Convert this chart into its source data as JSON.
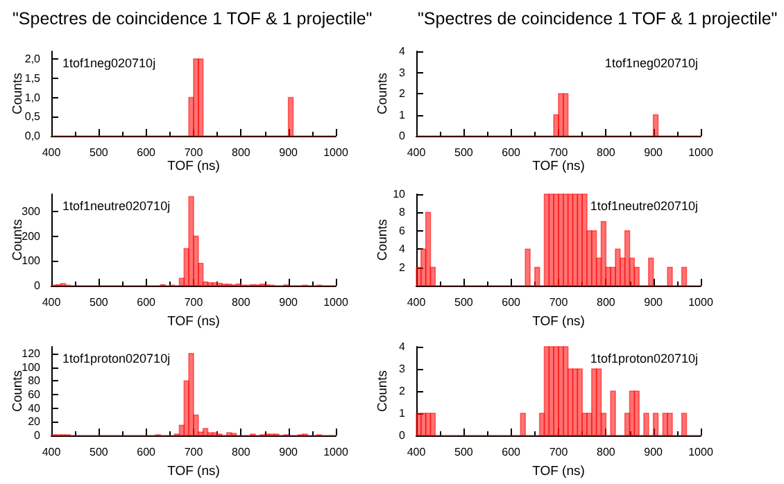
{
  "chart_data": [
    {
      "type": "histogram",
      "title": "\"Spectres de coincidence 1 TOF & 1 projectile\"",
      "xlabel": "TOF (ns)",
      "ylabel": "Counts",
      "annotations": [
        "1tof1neg020710j"
      ],
      "color": "#ff0000",
      "xlim": [
        400,
        1000
      ],
      "xticks": [
        400,
        500,
        600,
        700,
        800,
        900,
        1000
      ],
      "ylim": [
        0,
        2.2
      ],
      "yticks": [
        {
          "value": 0,
          "label": "0,0"
        },
        {
          "value": 0.5,
          "label": "0,5"
        },
        {
          "value": 1,
          "label": "1,0"
        },
        {
          "value": 1.5,
          "label": "1,5"
        },
        {
          "value": 2,
          "label": "2,0"
        }
      ],
      "grid": false,
      "bins": [
        400,
        410,
        420,
        430,
        440,
        450,
        460,
        470,
        480,
        490,
        500,
        510,
        520,
        530,
        540,
        550,
        560,
        570,
        580,
        590,
        600,
        610,
        620,
        630,
        640,
        650,
        660,
        670,
        680,
        690,
        700,
        710,
        720,
        730,
        740,
        750,
        760,
        770,
        780,
        790,
        800,
        810,
        820,
        830,
        840,
        850,
        860,
        870,
        880,
        890,
        900,
        910,
        920,
        930,
        940,
        950,
        960,
        970,
        980,
        990,
        1000
      ],
      "values": [
        0,
        0,
        0,
        0,
        0,
        0,
        0,
        0,
        0,
        0,
        0,
        0,
        0,
        0,
        0,
        0,
        0,
        0,
        0,
        0,
        0,
        0,
        0,
        0,
        0,
        0,
        0,
        0,
        0,
        1,
        2,
        2,
        0,
        0,
        0,
        0,
        0,
        0,
        0,
        0,
        0,
        0,
        0,
        0,
        0,
        0,
        0,
        0,
        0,
        0,
        1,
        0,
        0,
        0,
        0,
        0,
        0,
        0,
        0,
        0
      ]
    },
    {
      "type": "histogram",
      "title": "\"Spectres de coincidence 1 TOF & 1 projectile\"",
      "xlabel": "TOF (ns)",
      "ylabel": "Counts",
      "annotations": [
        "1tof1neg020710j"
      ],
      "color": "#ff0000",
      "xlim": [
        400,
        1000
      ],
      "xticks": [
        400,
        500,
        600,
        700,
        800,
        900,
        1000
      ],
      "ylim": [
        0,
        4
      ],
      "yticks": [
        0,
        1,
        2,
        3,
        4
      ],
      "grid": false,
      "bins": [
        400,
        410,
        420,
        430,
        440,
        450,
        460,
        470,
        480,
        490,
        500,
        510,
        520,
        530,
        540,
        550,
        560,
        570,
        580,
        590,
        600,
        610,
        620,
        630,
        640,
        650,
        660,
        670,
        680,
        690,
        700,
        710,
        720,
        730,
        740,
        750,
        760,
        770,
        780,
        790,
        800,
        810,
        820,
        830,
        840,
        850,
        860,
        870,
        880,
        890,
        900,
        910,
        920,
        930,
        940,
        950,
        960,
        970,
        980,
        990,
        1000
      ],
      "values": [
        0,
        0,
        0,
        0,
        0,
        0,
        0,
        0,
        0,
        0,
        0,
        0,
        0,
        0,
        0,
        0,
        0,
        0,
        0,
        0,
        0,
        0,
        0,
        0,
        0,
        0,
        0,
        0,
        0,
        1,
        2,
        2,
        0,
        0,
        0,
        0,
        0,
        0,
        0,
        0,
        0,
        0,
        0,
        0,
        0,
        0,
        0,
        0,
        0,
        0,
        1,
        0,
        0,
        0,
        0,
        0,
        0,
        0,
        0,
        0
      ]
    },
    {
      "type": "histogram",
      "xlabel": "TOF (ns)",
      "ylabel": "Counts",
      "annotations": [
        "1tof1neutre020710j"
      ],
      "color": "#ff0000",
      "xlim": [
        400,
        1000
      ],
      "xticks": [
        400,
        500,
        600,
        700,
        800,
        900,
        1000
      ],
      "ylim": [
        0,
        370
      ],
      "yticks": [
        0,
        100,
        200,
        300
      ],
      "grid": false,
      "bins": [
        400,
        410,
        420,
        430,
        440,
        450,
        460,
        470,
        480,
        490,
        500,
        510,
        520,
        530,
        540,
        550,
        560,
        570,
        580,
        590,
        600,
        610,
        620,
        630,
        640,
        650,
        660,
        670,
        680,
        690,
        700,
        710,
        720,
        730,
        740,
        750,
        760,
        770,
        780,
        790,
        800,
        810,
        820,
        830,
        840,
        850,
        860,
        870,
        880,
        890,
        900,
        910,
        920,
        930,
        940,
        950,
        960,
        970,
        980,
        990,
        1000
      ],
      "values": [
        2,
        4,
        8,
        2,
        0,
        0,
        0,
        0,
        0,
        0,
        0,
        0,
        0,
        0,
        0,
        0,
        0,
        0,
        0,
        0,
        0,
        0,
        0,
        4,
        0,
        2,
        0,
        30,
        150,
        360,
        200,
        90,
        15,
        12,
        12,
        10,
        6,
        6,
        3,
        7,
        2,
        2,
        4,
        3,
        6,
        3,
        2,
        0,
        0,
        3,
        0,
        0,
        0,
        2,
        0,
        0,
        2,
        0,
        0,
        0
      ]
    },
    {
      "type": "histogram",
      "xlabel": "TOF (ns)",
      "ylabel": "Counts",
      "annotations": [
        "1tof1neutre020710j"
      ],
      "color": "#ff0000",
      "xlim": [
        400,
        1000
      ],
      "xticks": [
        400,
        500,
        600,
        700,
        800,
        900,
        1000
      ],
      "ylim": [
        0,
        10
      ],
      "yticks": [
        2,
        4,
        6,
        8,
        10
      ],
      "grid": false,
      "bins": [
        400,
        410,
        420,
        430,
        440,
        450,
        460,
        470,
        480,
        490,
        500,
        510,
        520,
        530,
        540,
        550,
        560,
        570,
        580,
        590,
        600,
        610,
        620,
        630,
        640,
        650,
        660,
        670,
        680,
        690,
        700,
        710,
        720,
        730,
        740,
        750,
        760,
        770,
        780,
        790,
        800,
        810,
        820,
        830,
        840,
        850,
        860,
        870,
        880,
        890,
        900,
        910,
        920,
        930,
        940,
        950,
        960,
        970,
        980,
        990,
        1000
      ],
      "values": [
        2,
        4,
        8,
        2,
        0,
        0,
        0,
        0,
        0,
        0,
        0,
        0,
        0,
        0,
        0,
        0,
        0,
        0,
        0,
        0,
        0,
        0,
        0,
        4,
        0,
        2,
        0,
        10,
        10,
        10,
        10,
        10,
        10,
        10,
        10,
        10,
        6,
        6,
        3,
        7,
        2,
        2,
        4,
        3,
        6,
        3,
        2,
        0,
        0,
        3,
        0,
        0,
        0,
        2,
        0,
        0,
        2,
        0,
        0,
        0
      ]
    },
    {
      "type": "histogram",
      "xlabel": "TOF (ns)",
      "ylabel": "Counts",
      "annotations": [
        "1tof1proton020710j"
      ],
      "color": "#ff0000",
      "xlim": [
        400,
        1000
      ],
      "xticks": [
        400,
        500,
        600,
        700,
        800,
        900,
        1000
      ],
      "ylim": [
        0,
        130
      ],
      "yticks": [
        0,
        20,
        40,
        60,
        80,
        100,
        120
      ],
      "grid": false,
      "bins": [
        400,
        410,
        420,
        430,
        440,
        450,
        460,
        470,
        480,
        490,
        500,
        510,
        520,
        530,
        540,
        550,
        560,
        570,
        580,
        590,
        600,
        610,
        620,
        630,
        640,
        650,
        660,
        670,
        680,
        690,
        700,
        710,
        720,
        730,
        740,
        750,
        760,
        770,
        780,
        790,
        800,
        810,
        820,
        830,
        840,
        850,
        860,
        870,
        880,
        890,
        900,
        910,
        920,
        930,
        940,
        950,
        960,
        970,
        980,
        990,
        1000
      ],
      "values": [
        1,
        1,
        1,
        1,
        0,
        0,
        0,
        0,
        0,
        0,
        0,
        0,
        0,
        0,
        0,
        0,
        0,
        0,
        0,
        0,
        0,
        0,
        1,
        0,
        0,
        0,
        2,
        15,
        80,
        120,
        30,
        5,
        10,
        4,
        4,
        2,
        0,
        4,
        3,
        0,
        0,
        0,
        2,
        0,
        1,
        2,
        2,
        2,
        0,
        1,
        0,
        0,
        1,
        2,
        0,
        0,
        1,
        0,
        0,
        0
      ]
    },
    {
      "type": "histogram",
      "xlabel": "TOF (ns)",
      "ylabel": "Counts",
      "annotations": [
        "1tof1proton020710j"
      ],
      "color": "#ff0000",
      "xlim": [
        400,
        1000
      ],
      "xticks": [
        400,
        500,
        600,
        700,
        800,
        900,
        1000
      ],
      "ylim": [
        0,
        4
      ],
      "yticks": [
        0,
        1,
        2,
        3,
        4
      ],
      "grid": false,
      "bins": [
        400,
        410,
        420,
        430,
        440,
        450,
        460,
        470,
        480,
        490,
        500,
        510,
        520,
        530,
        540,
        550,
        560,
        570,
        580,
        590,
        600,
        610,
        620,
        630,
        640,
        650,
        660,
        670,
        680,
        690,
        700,
        710,
        720,
        730,
        740,
        750,
        760,
        770,
        780,
        790,
        800,
        810,
        820,
        830,
        840,
        850,
        860,
        870,
        880,
        890,
        900,
        910,
        920,
        930,
        940,
        950,
        960,
        970,
        980,
        990,
        1000
      ],
      "values": [
        1,
        1,
        1,
        1,
        0,
        0,
        0,
        0,
        0,
        0,
        0,
        0,
        0,
        0,
        0,
        0,
        0,
        0,
        0,
        0,
        0,
        0,
        1,
        0,
        0,
        0,
        1,
        4,
        4,
        4,
        4,
        4,
        3,
        3,
        3,
        1,
        1,
        3,
        3,
        1,
        0,
        2,
        0,
        0,
        1,
        2,
        2,
        0,
        1,
        0,
        1,
        0,
        1,
        1,
        0,
        0,
        1,
        0,
        0,
        0
      ]
    }
  ]
}
